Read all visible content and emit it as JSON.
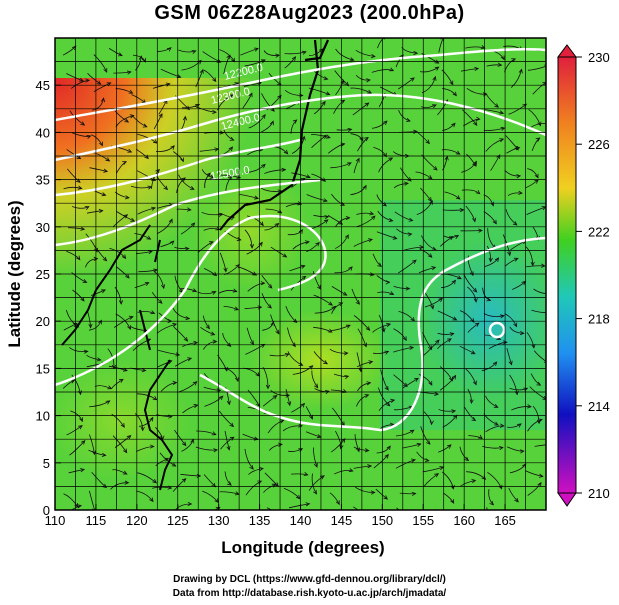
{
  "title": "GSM 06Z28Aug2023 (200.0hPa)",
  "axes": {
    "x_label": "Longitude (degrees)",
    "y_label": "Latitude  (degrees)",
    "x_ticks": [
      "110",
      "115",
      "120",
      "125",
      "130",
      "135",
      "140",
      "145",
      "150",
      "155",
      "160",
      "165"
    ],
    "y_ticks": [
      "0",
      "5",
      "10",
      "15",
      "20",
      "25",
      "30",
      "35",
      "40",
      "45"
    ]
  },
  "colorbar": {
    "labels": [
      "230",
      "226",
      "222",
      "218",
      "214",
      "210"
    ],
    "colors": [
      "#e0203c",
      "#f08020",
      "#f0d020",
      "#40d020",
      "#20c8b8",
      "#2090f0",
      "#1010c0",
      "#d010c0"
    ]
  },
  "contours": [
    {
      "label": "12500.0"
    },
    {
      "label": "12200.0"
    },
    {
      "label": "12300.0"
    },
    {
      "label": "12400.0"
    }
  ],
  "credits": {
    "line1": "Drawing by DCL (https://www.gfd-dennou.org/library/dcl/)",
    "line2": "Data from http://database.rish.kyoto-u.ac.jp/arch/jmadata/"
  }
}
